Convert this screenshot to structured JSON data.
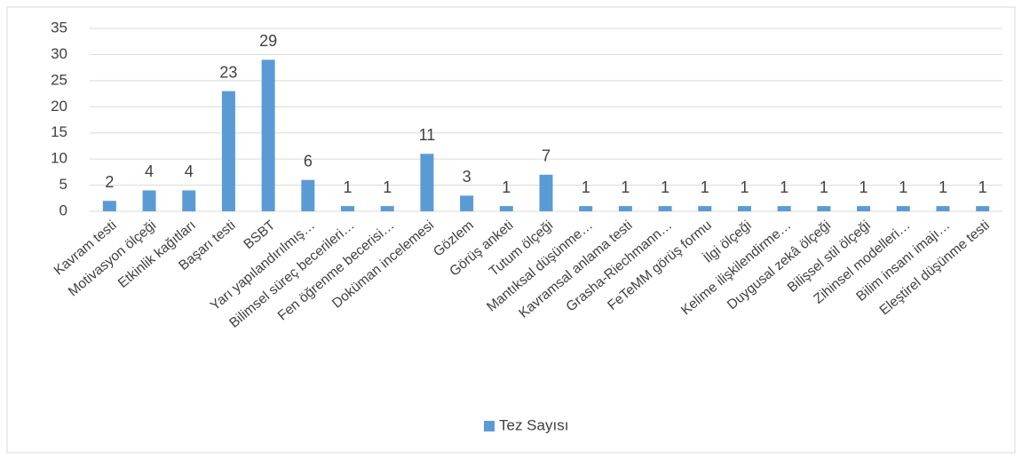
{
  "chart_data": {
    "type": "bar",
    "categories": [
      "Kavram testi",
      "Motivasyon ölçeği",
      "Etkinlik kağıtları",
      "Başarı testi",
      "BSBT",
      "Yarı yapılandırılmış…",
      "Bilimsel süreç becerileri…",
      "Fen öğrenme becerisi…",
      "Doküman incelemesi",
      "Gözlem",
      "Görüş anketi",
      "Tutum ölçeği",
      "Mantıksal düşünme…",
      "Kavramsal anlama testi",
      "Grasha-Riechmann…",
      "FeTeMM görüş formu",
      "İlgi ölçeği",
      "Kelime ilişkilendirme…",
      "Duygusal zekâ ölçeği",
      "Bilişsel stil ölçeği",
      "Zihinsel modelleri…",
      "Bilim insanı imajı…",
      "Eleştirel düşünme testi"
    ],
    "series": [
      {
        "name": "Tez Sayısı",
        "color": "#5b9bd5",
        "values": [
          2,
          4,
          4,
          23,
          29,
          6,
          1,
          1,
          11,
          3,
          1,
          7,
          1,
          1,
          1,
          1,
          1,
          1,
          1,
          1,
          1,
          1,
          1
        ]
      }
    ],
    "ylim": [
      0,
      35
    ],
    "yticks": [
      0,
      5,
      10,
      15,
      20,
      25,
      30,
      35
    ],
    "grid": true,
    "legend": "bottom"
  }
}
